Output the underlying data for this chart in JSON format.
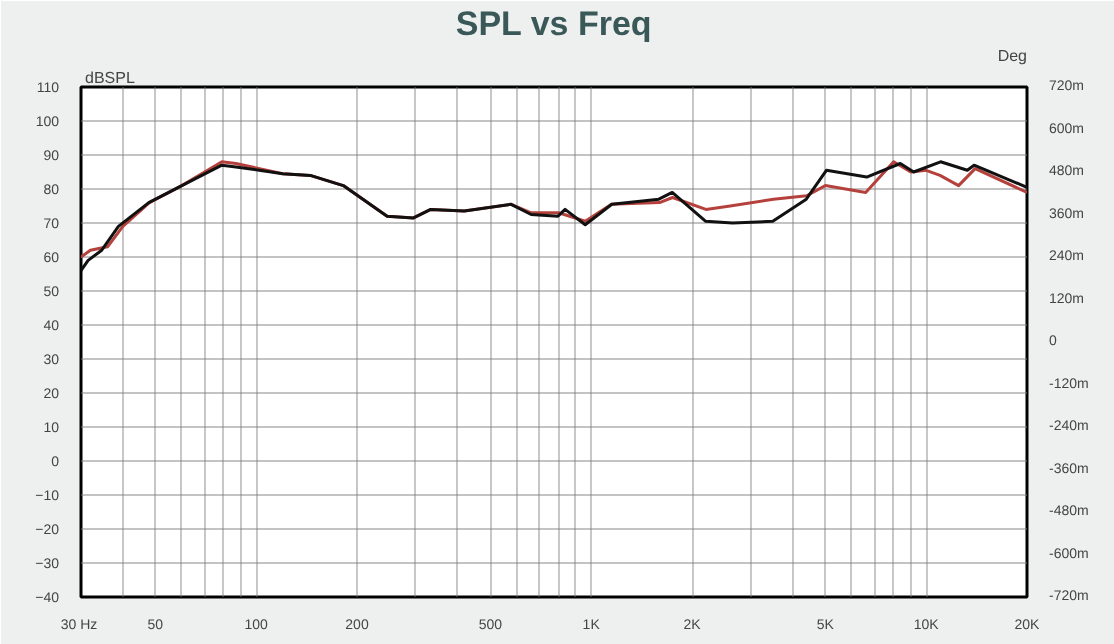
{
  "chart_data": {
    "type": "line",
    "title": "SPL vs Freq",
    "ylabel": "dBSPL",
    "y2label": "Deg",
    "xlim": [
      30,
      20000
    ],
    "ylim": [
      -40,
      110
    ],
    "y2lim": [
      -720,
      720
    ],
    "log": "x",
    "grid": true,
    "line_style": "solid",
    "xticks": [
      {
        "value": 30,
        "label": "30  Hz"
      },
      {
        "value": 40,
        "label": null
      },
      50,
      {
        "value": 60,
        "label": null
      },
      {
        "value": 70,
        "label": null
      },
      {
        "value": 80,
        "label": null
      },
      {
        "value": 90,
        "label": null
      },
      100,
      200,
      {
        "value": 300,
        "label": null
      },
      {
        "value": 400,
        "label": null
      },
      500,
      {
        "value": 600,
        "label": null
      },
      {
        "value": 700,
        "label": null
      },
      {
        "value": 800,
        "label": null
      },
      {
        "value": 900,
        "label": null
      },
      {
        "value": 1000,
        "label": "1K"
      },
      {
        "value": 2000,
        "label": "2K"
      },
      {
        "value": 3000,
        "label": null
      },
      {
        "value": 4000,
        "label": null
      },
      {
        "value": 5000,
        "label": "5K"
      },
      {
        "value": 6000,
        "label": null
      },
      {
        "value": 7000,
        "label": null
      },
      {
        "value": 8000,
        "label": null
      },
      {
        "value": 9000,
        "label": null
      },
      {
        "value": 10000,
        "label": "10K"
      },
      {
        "value": 20000,
        "label": "20K"
      }
    ],
    "yticks": [
      -40,
      -30,
      -20,
      -10,
      0,
      10,
      20,
      30,
      40,
      50,
      60,
      70,
      80,
      90,
      100,
      110
    ],
    "y2ticks": [
      {
        "value": -720,
        "label": "-720m"
      },
      {
        "value": -600,
        "label": "-600m"
      },
      {
        "value": -480,
        "label": "-480m"
      },
      {
        "value": -360,
        "label": "-360m"
      },
      {
        "value": -240,
        "label": "-240m"
      },
      {
        "value": -120,
        "label": "-120m"
      },
      0,
      {
        "value": 120,
        "label": "120m"
      },
      {
        "value": 240,
        "label": "240m"
      },
      {
        "value": 360,
        "label": "360m"
      },
      {
        "value": 480,
        "label": "480m"
      },
      {
        "value": 600,
        "label": "600m"
      },
      {
        "value": 720,
        "label": "720m"
      }
    ],
    "series": [
      {
        "color": "#b5413c",
        "x": [
          30,
          32,
          36,
          40,
          48,
          60,
          79,
          87,
          120,
          145,
          182,
          246,
          295,
          332,
          418,
          577,
          662,
          800,
          960,
          1150,
          1600,
          1750,
          2200,
          2600,
          3500,
          4400,
          5000,
          6600,
          8000,
          9000,
          10000,
          11000,
          12500,
          14000,
          20000
        ],
        "values": [
          60,
          62,
          63,
          69,
          76,
          81,
          88,
          87.5,
          84.5,
          84,
          81,
          72,
          71.5,
          74,
          73.5,
          75.5,
          73,
          73,
          70.5,
          75.5,
          76,
          77.5,
          74,
          75,
          77,
          78,
          81,
          79,
          88,
          85,
          85.5,
          84,
          81,
          86,
          79
        ]
      },
      {
        "color": "#111111",
        "x": [
          30,
          31.5,
          34.6,
          38.8,
          47.8,
          60,
          79,
          87,
          120,
          145,
          182,
          246,
          295,
          332,
          418,
          577,
          662,
          796,
          836,
          960,
          1153,
          1592,
          1746,
          2198,
          2643,
          3485,
          4387,
          5037,
          6646,
          8370,
          9180,
          11040,
          13270,
          13900,
          20000
        ],
        "values": [
          56,
          59,
          62,
          69,
          76,
          81,
          87,
          86.5,
          84.5,
          84,
          81,
          72,
          71.5,
          74,
          73.5,
          75.5,
          72.5,
          72,
          74,
          69.5,
          75.5,
          77,
          79,
          70.5,
          70,
          70.5,
          77,
          85.5,
          83.5,
          87.5,
          85,
          88,
          85.5,
          87,
          80.5
        ]
      }
    ]
  }
}
